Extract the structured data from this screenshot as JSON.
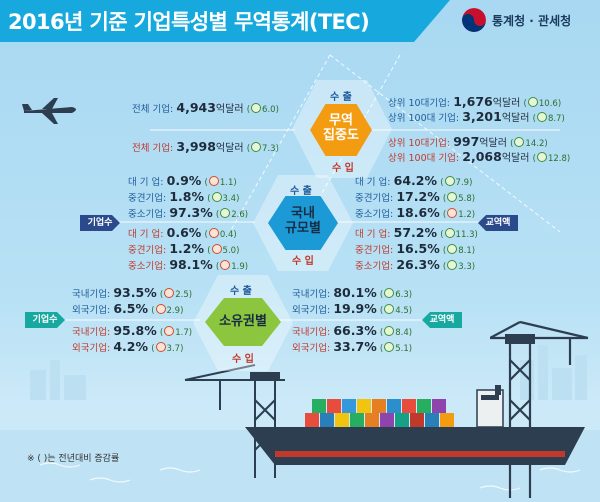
{
  "header": {
    "title": "2016년 기준 기업특성별 무역통계(TEC)",
    "agency": "통계청 · 관세청"
  },
  "section1": {
    "hex_title": "무역\n집중도",
    "export_label": "수 출",
    "import_label": "수 입",
    "left": [
      {
        "key": "전체 기업:",
        "value": "4,943",
        "unit": "억달러",
        "change": "6.0",
        "dir": "up"
      },
      {
        "key": "전체 기업:",
        "value": "3,998",
        "unit": "억달러",
        "change": "7.3",
        "dir": "up"
      }
    ],
    "right": [
      {
        "key": "상위 10대기업:",
        "value": "1,676",
        "unit": "억달러",
        "change": "10.6",
        "dir": "up"
      },
      {
        "key": "상위 100대 기업:",
        "value": "3,201",
        "unit": "억달러",
        "change": "8.7",
        "dir": "up"
      },
      {
        "key": "상위 10대기업:",
        "value": "997",
        "unit": "억달러",
        "change": "14.2",
        "dir": "up"
      },
      {
        "key": "상위 100대 기업:",
        "value": "2,068",
        "unit": "억달러",
        "change": "12.8",
        "dir": "up"
      }
    ]
  },
  "section2": {
    "hex_title": "국내\n규모별",
    "export_label": "수 출",
    "import_label": "수 입",
    "left_tag": "기업수",
    "right_tag": "교역액",
    "left": [
      {
        "key": "대 기 업:",
        "value": "0.9%",
        "change": "1.1",
        "dir": "dn"
      },
      {
        "key": "중견기업:",
        "value": "1.8%",
        "change": "3.4",
        "dir": "up"
      },
      {
        "key": "중소기업:",
        "value": "97.3%",
        "change": "2.6",
        "dir": "up"
      },
      {
        "key": "대 기 업:",
        "value": "0.6%",
        "change": "0.4",
        "dir": "dn"
      },
      {
        "key": "중견기업:",
        "value": "1.2%",
        "change": "5.0",
        "dir": "dn"
      },
      {
        "key": "중소기업:",
        "value": "98.1%",
        "change": "1.9",
        "dir": "dn"
      }
    ],
    "right": [
      {
        "key": "대 기 업:",
        "value": "64.2%",
        "change": "7.9",
        "dir": "up"
      },
      {
        "key": "중견기업:",
        "value": "17.2%",
        "change": "5.8",
        "dir": "up"
      },
      {
        "key": "중소기업:",
        "value": "18.6%",
        "change": "1.2",
        "dir": "dn"
      },
      {
        "key": "대 기 업:",
        "value": "57.2%",
        "change": "11.3",
        "dir": "up"
      },
      {
        "key": "중견기업:",
        "value": "16.5%",
        "change": "8.1",
        "dir": "up"
      },
      {
        "key": "중소기업:",
        "value": "26.3%",
        "change": "3.3",
        "dir": "up"
      }
    ]
  },
  "section3": {
    "hex_title": "소유권별",
    "export_label": "수 출",
    "import_label": "수 입",
    "left_tag": "기업수",
    "right_tag": "교역액",
    "left": [
      {
        "key": "국내기업:",
        "value": "93.5%",
        "change": "2.5",
        "dir": "dn"
      },
      {
        "key": "외국기업:",
        "value": "6.5%",
        "change": "2.9",
        "dir": "dn"
      },
      {
        "key": "국내기업:",
        "value": "95.8%",
        "change": "1.7",
        "dir": "dn"
      },
      {
        "key": "외국기업:",
        "value": "4.2%",
        "change": "3.7",
        "dir": "dn"
      }
    ],
    "right": [
      {
        "key": "국내기업:",
        "value": "80.1%",
        "change": "6.3",
        "dir": "up"
      },
      {
        "key": "외국기업:",
        "value": "19.9%",
        "change": "4.5",
        "dir": "up"
      },
      {
        "key": "국내기업:",
        "value": "66.3%",
        "change": "8.4",
        "dir": "up"
      },
      {
        "key": "외국기업:",
        "value": "33.7%",
        "change": "5.1",
        "dir": "up"
      }
    ]
  },
  "footnote": "※ (      )는 전년대비 증감률",
  "icons": [
    "airplane-icon",
    "container-ship-icon",
    "port-crane-icon",
    "smile-up-icon",
    "smile-down-icon"
  ],
  "colors": {
    "title_band": "#17a9dd",
    "hex_orange": "#f39c12",
    "hex_blue": "#1b9ad6",
    "hex_green": "#8cc63f",
    "export_blue": "#1f5c99",
    "import_red": "#c0392b",
    "tag_navy": "#2b4a8c"
  }
}
